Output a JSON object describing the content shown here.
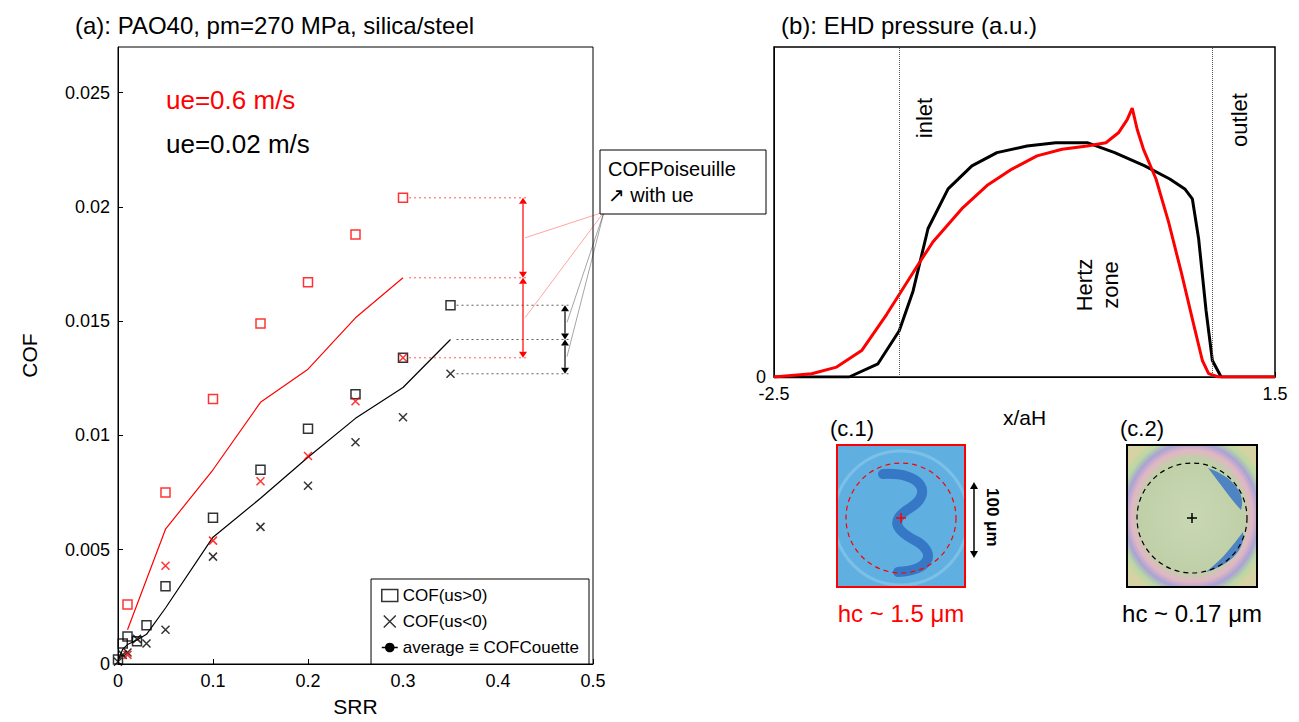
{
  "chart_data": [
    {
      "type": "scatter",
      "title": "(a): PAO40, pm=270 MPa, silica/steel",
      "x_label": "SRR",
      "y_label": "COF",
      "xlim": [
        0,
        0.5
      ],
      "xticks": [
        0,
        0.1,
        0.2,
        0.3,
        0.4,
        0.5
      ],
      "ylim": [
        0,
        0.027
      ],
      "yticks": [
        0,
        0.005,
        0.01,
        0.015,
        0.02,
        0.025
      ],
      "grid": false,
      "legend": "lower right",
      "series": [
        {
          "name": "COF(us>0)",
          "type": "scatter",
          "marker": "square",
          "color": "#000000",
          "x": [
            0,
            0.005,
            0.01,
            0.02,
            0.03,
            0.05,
            0.1,
            0.15,
            0.2,
            0.25,
            0.3,
            0.35
          ],
          "values": [
            0.0002,
            0.0009,
            0.0012,
            0.001,
            0.0017,
            0.0034,
            0.0064,
            0.0085,
            0.0103,
            0.0118,
            0.0134,
            0.0157
          ]
        },
        {
          "name": "COF(us<0)",
          "type": "scatter",
          "marker": "x",
          "color": "#000000",
          "x": [
            0,
            0.005,
            0.01,
            0.02,
            0.03,
            0.05,
            0.1,
            0.15,
            0.2,
            0.25,
            0.3,
            0.35
          ],
          "values": [
            0.0001,
            0.0004,
            0.0005,
            0.0011,
            0.0009,
            0.0015,
            0.0047,
            0.006,
            0.0078,
            0.0097,
            0.0108,
            0.0127
          ]
        },
        {
          "name": "average ≡ COFCouette",
          "type": "line",
          "line_style": "solid",
          "color": "#000000",
          "x": [
            0,
            0.005,
            0.01,
            0.02,
            0.03,
            0.05,
            0.1,
            0.15,
            0.2,
            0.25,
            0.3,
            0.35
          ],
          "values": [
            0.00015,
            0.00065,
            0.00085,
            0.00105,
            0.0013,
            0.00245,
            0.00555,
            0.00725,
            0.00905,
            0.01075,
            0.0121,
            0.0142
          ]
        },
        {
          "name": "COF(us>0)",
          "type": "scatter",
          "marker": "square",
          "color": "#ff0000",
          "x": [
            0.01,
            0.05,
            0.1,
            0.15,
            0.2,
            0.25,
            0.3
          ],
          "values": [
            0.0026,
            0.0075,
            0.0116,
            0.0149,
            0.0167,
            0.0188,
            0.0204
          ]
        },
        {
          "name": "COF(us<0)",
          "type": "scatter",
          "marker": "x",
          "color": "#ff0000",
          "x": [
            0.01,
            0.05,
            0.1,
            0.15,
            0.2,
            0.25,
            0.3
          ],
          "values": [
            0.0004,
            0.0043,
            0.0054,
            0.008,
            0.0091,
            0.0115,
            0.0134
          ]
        },
        {
          "name": "average ≡ COFCouette",
          "type": "line",
          "line_style": "solid",
          "color": "#ff0000",
          "x": [
            0.01,
            0.05,
            0.1,
            0.15,
            0.2,
            0.25,
            0.3
          ],
          "values": [
            0.0015,
            0.0059,
            0.0085,
            0.01145,
            0.0129,
            0.01515,
            0.0169
          ]
        }
      ],
      "annotations": [
        {
          "text": "ue=0.6 m/s",
          "color": "#ff0000"
        },
        {
          "text": "ue=0.02 m/s",
          "color": "#000000"
        }
      ],
      "box_text": [
        "COFPoiseuille",
        "↗ with ue"
      ]
    },
    {
      "type": "line",
      "title": "(b): EHD pressure (a.u.)",
      "x_label": "x/aH",
      "xlim": [
        -2.5,
        1.5
      ],
      "xticks": [
        -2.5,
        1.5
      ],
      "ylim": [
        0,
        1
      ],
      "yticks": [
        0
      ],
      "grid": false,
      "boundaries": [
        -1.5,
        1.0
      ],
      "region_labels": [
        "inlet",
        "Hertz zone",
        "outlet"
      ],
      "series": [
        {
          "color": "#000000",
          "line_style": "solid",
          "x": [
            -2.5,
            -1.9,
            -1.67,
            -1.5,
            -1.39,
            -1.27,
            -1.11,
            -0.92,
            -0.72,
            -0.48,
            -0.25,
            0,
            0.22,
            0.46,
            0.66,
            0.78,
            0.84,
            0.89,
            0.95,
            1.0,
            1.07,
            1.5
          ],
          "values": [
            0,
            0,
            0.04,
            0.14,
            0.26,
            0.45,
            0.57,
            0.64,
            0.68,
            0.7,
            0.71,
            0.71,
            0.68,
            0.64,
            0.6,
            0.57,
            0.54,
            0.42,
            0.2,
            0.05,
            0,
            0
          ]
        },
        {
          "color": "#ff0000",
          "line_style": "solid",
          "x": [
            -2.5,
            -2.2,
            -2.0,
            -1.8,
            -1.6,
            -1.5,
            -1.35,
            -1.23,
            -1.0,
            -0.8,
            -0.6,
            -0.4,
            -0.2,
            0,
            0.15,
            0.25,
            0.32,
            0.36,
            0.4,
            0.45,
            0.55,
            0.65,
            0.75,
            0.85,
            0.92,
            0.97,
            1.05,
            1.5
          ],
          "values": [
            0,
            0.01,
            0.03,
            0.08,
            0.19,
            0.25,
            0.34,
            0.41,
            0.51,
            0.58,
            0.63,
            0.67,
            0.69,
            0.7,
            0.71,
            0.74,
            0.78,
            0.815,
            0.75,
            0.69,
            0.6,
            0.47,
            0.32,
            0.16,
            0.05,
            0.01,
            0,
            0
          ]
        }
      ]
    }
  ],
  "images": [
    {
      "label": "(c.1)",
      "caption": "hc ~ 1.5 μm",
      "color": "#ff0000",
      "scale_bar": "100 μm"
    },
    {
      "label": "(c.2)",
      "caption": "hc ~ 0.17 μm",
      "color": "#000000"
    }
  ]
}
